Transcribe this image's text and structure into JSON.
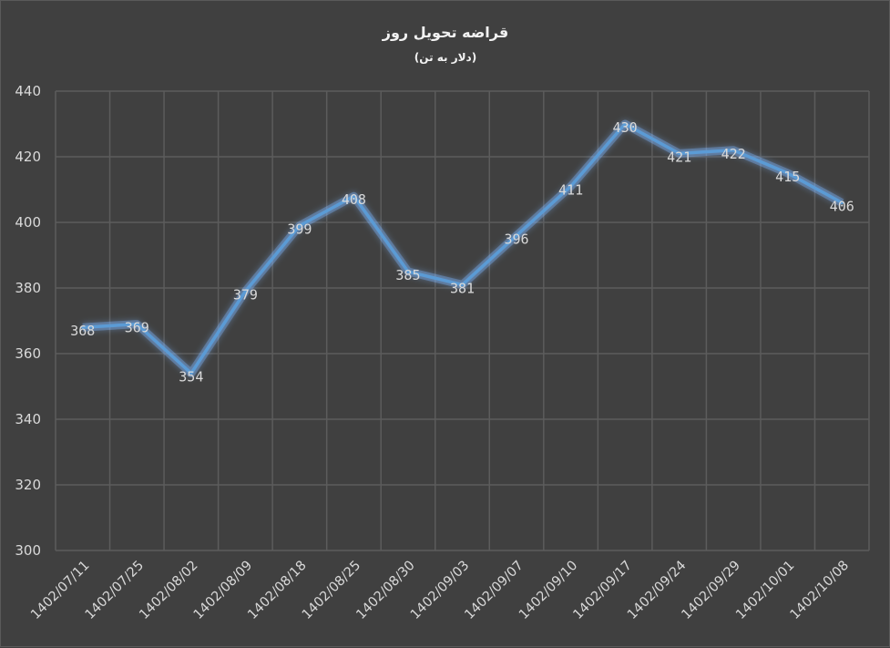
{
  "chart_data": {
    "type": "line",
    "title": "قراضه تحویل روز",
    "subtitle": "(دلار به تن)",
    "categories": [
      "1402/07/11",
      "1402/07/25",
      "1402/08/02",
      "1402/08/09",
      "1402/08/18",
      "1402/08/25",
      "1402/08/30",
      "1402/09/03",
      "1402/09/07",
      "1402/09/10",
      "1402/09/17",
      "1402/09/24",
      "1402/09/29",
      "1402/10/01",
      "1402/10/08"
    ],
    "values": [
      368,
      369,
      354,
      379,
      399,
      408,
      385,
      381,
      396,
      411,
      430,
      421,
      422,
      415,
      406
    ],
    "ylim": [
      300,
      440
    ],
    "yticks": [
      300,
      320,
      340,
      360,
      380,
      400,
      420,
      440
    ],
    "grid": true,
    "legend": "none",
    "line_color": "#5b9bd5",
    "glow_color": "#7fb8ff",
    "background": "#404040"
  }
}
